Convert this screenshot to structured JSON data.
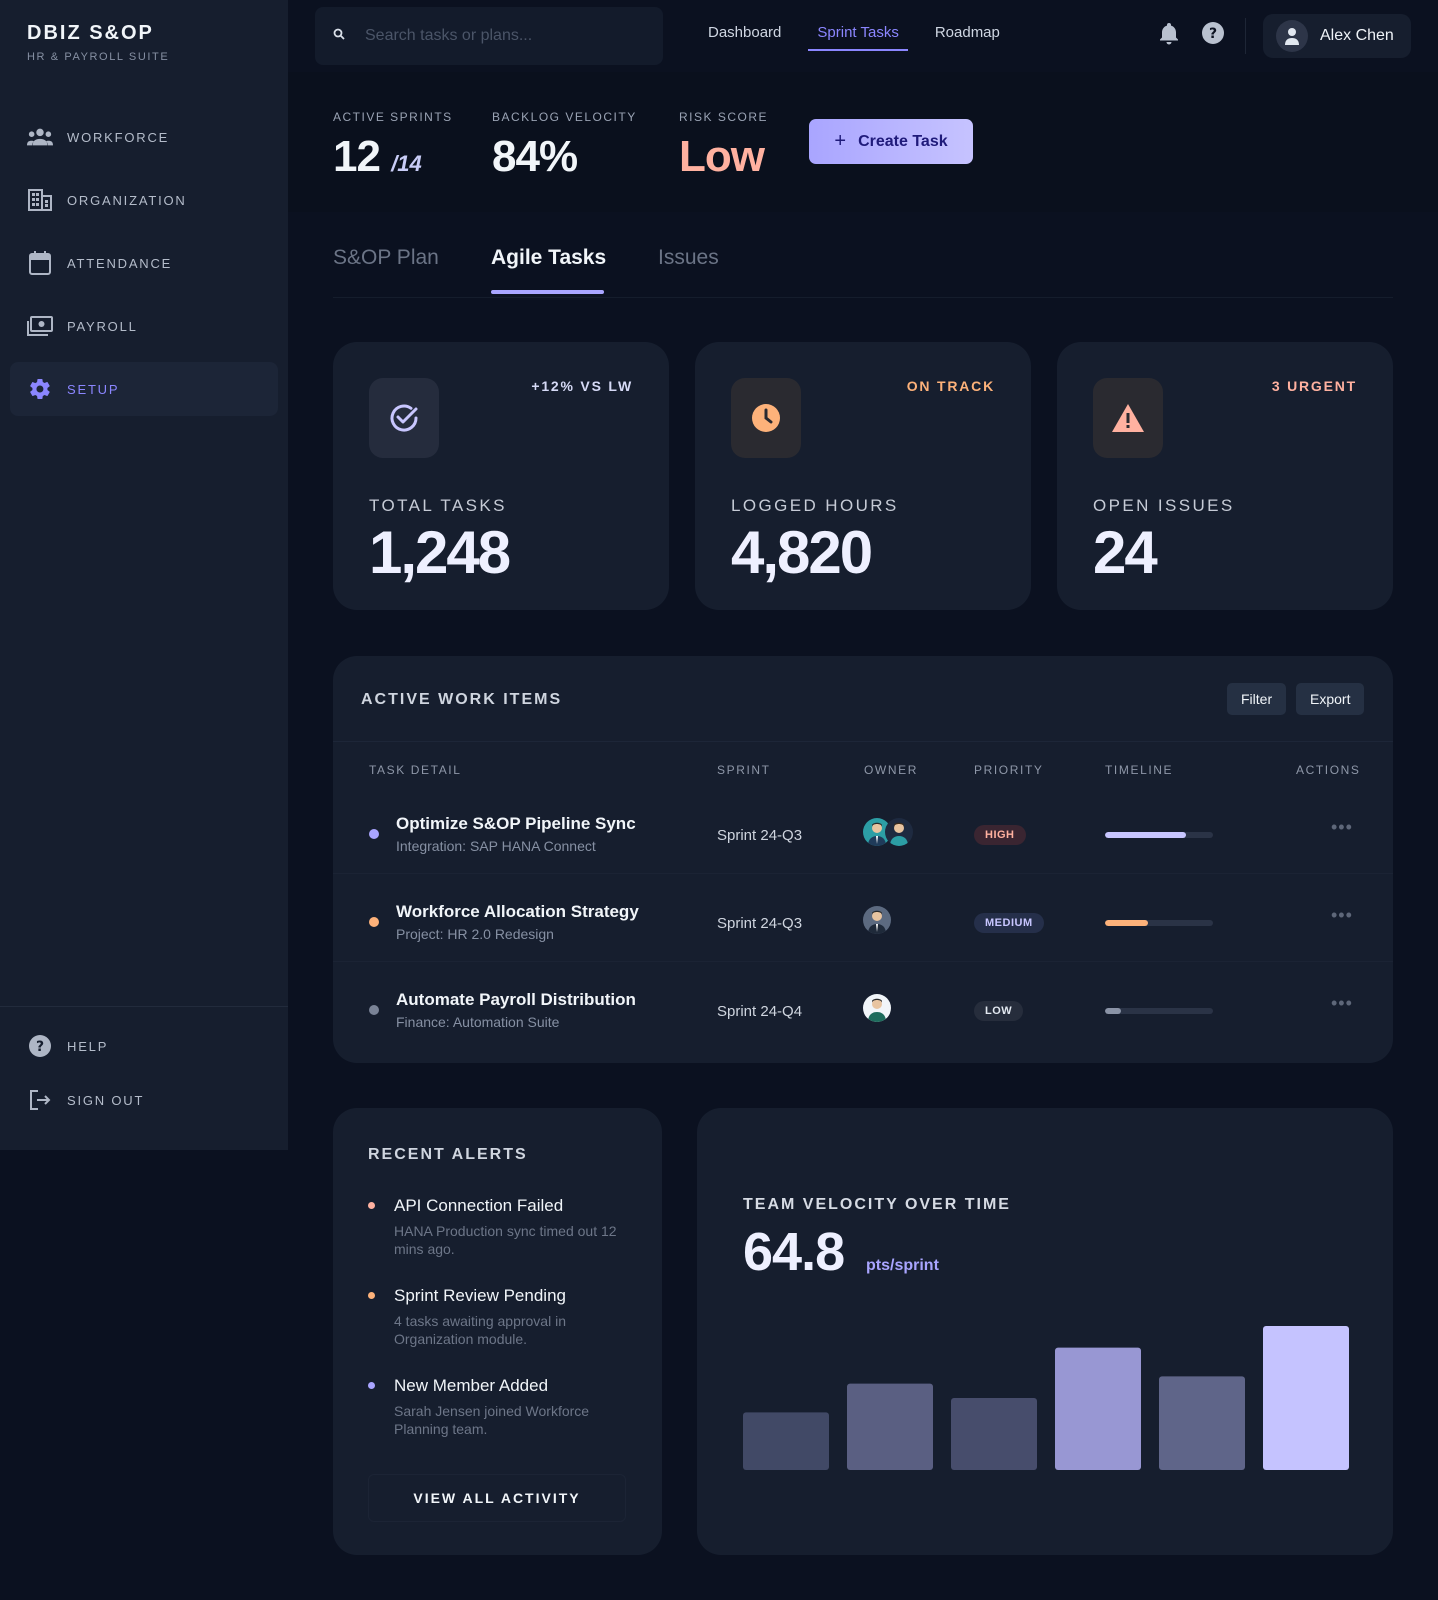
{
  "brand": {
    "title": "DBIZ S&OP",
    "subtitle": "HR & PAYROLL SUITE"
  },
  "sidebar": {
    "items": [
      {
        "label": "WORKFORCE",
        "icon": "people-icon"
      },
      {
        "label": "ORGANIZATION",
        "icon": "building-icon"
      },
      {
        "label": "ATTENDANCE",
        "icon": "calendar-icon"
      },
      {
        "label": "PAYROLL",
        "icon": "payments-icon"
      },
      {
        "label": "SETUP",
        "icon": "gear-icon",
        "active": true
      }
    ],
    "bottom": [
      {
        "label": "HELP",
        "icon": "help-icon"
      },
      {
        "label": "SIGN OUT",
        "icon": "logout-icon"
      }
    ]
  },
  "search": {
    "placeholder": "Search tasks or plans..."
  },
  "topnav": {
    "links": [
      "Dashboard",
      "Sprint Tasks",
      "Roadmap"
    ],
    "active": "Sprint Tasks"
  },
  "user": {
    "name": "Alex Chen"
  },
  "header": {
    "stats": [
      {
        "label": "ACTIVE SPRINTS",
        "value": "12",
        "suffix": "/14"
      },
      {
        "label": "BACKLOG VELOCITY",
        "value": "84%"
      },
      {
        "label": "RISK SCORE",
        "value": "Low"
      }
    ],
    "create_label": "Create Task"
  },
  "tabs": {
    "items": [
      "S&OP Plan",
      "Agile Tasks",
      "Issues"
    ],
    "active": "Agile Tasks"
  },
  "kpis": [
    {
      "badge": "+12% VS LW",
      "badge_color": "#d6daf6",
      "label": "TOTAL TASKS",
      "value": "1,248",
      "icon": "check-circle-icon"
    },
    {
      "badge": "ON TRACK",
      "badge_color": "#fdb27a",
      "label": "LOGGED HOURS",
      "value": "4,820",
      "icon": "clock-icon"
    },
    {
      "badge": "3 URGENT",
      "badge_color": "#ffb1a0",
      "label": "OPEN ISSUES",
      "value": "24",
      "icon": "warning-icon"
    }
  ],
  "work": {
    "title": "ACTIVE WORK ITEMS",
    "filter_label": "Filter",
    "export_label": "Export",
    "columns": [
      "TASK DETAIL",
      "SPRINT",
      "OWNER",
      "PRIORITY",
      "TIMELINE",
      "ACTIONS"
    ],
    "rows": [
      {
        "name": "Optimize S&OP Pipeline Sync",
        "sub": "Integration: SAP HANA Connect",
        "sprint": "Sprint 24-Q3",
        "priority": "HIGH",
        "progress": 0.75,
        "dot_color": "#a9a5ff",
        "bar_color": "#c8c6ff"
      },
      {
        "name": "Workforce Allocation Strategy",
        "sub": "Project: HR 2.0 Redesign",
        "sprint": "Sprint 24-Q3",
        "priority": "MEDIUM",
        "progress": 0.4,
        "dot_color": "#fdb27a",
        "bar_color": "#fdb27a"
      },
      {
        "name": "Automate Payroll Distribution",
        "sub": "Finance: Automation Suite",
        "sprint": "Sprint 24-Q4",
        "priority": "LOW",
        "progress": 0.15,
        "dot_color": "#7a8396",
        "bar_color": "#8a93a6"
      }
    ]
  },
  "alerts": {
    "title": "RECENT ALERTS",
    "items": [
      {
        "title": "API Connection Failed",
        "desc": "HANA Production sync timed out 12 mins ago.",
        "color": "#ffb1a0"
      },
      {
        "title": "Sprint Review Pending",
        "desc": "4 tasks awaiting approval in Organization module.",
        "color": "#fdb27a"
      },
      {
        "title": "New Member Added",
        "desc": "Sarah Jensen joined Workforce Planning team.",
        "color": "#a9a5ff"
      }
    ],
    "view_all": "VIEW ALL ACTIVITY"
  },
  "velocity": {
    "title": "TEAM VELOCITY OVER TIME",
    "value": "64.8",
    "unit": "pts/sprint"
  },
  "chart_data": {
    "type": "bar",
    "values": [
      40,
      60,
      50,
      85,
      65,
      100
    ],
    "ylim": [
      0,
      100
    ],
    "colors": [
      "#414966",
      "#5a5f82",
      "#474d6c",
      "#9897d3",
      "#5f6589",
      "#c5c3ff"
    ]
  }
}
